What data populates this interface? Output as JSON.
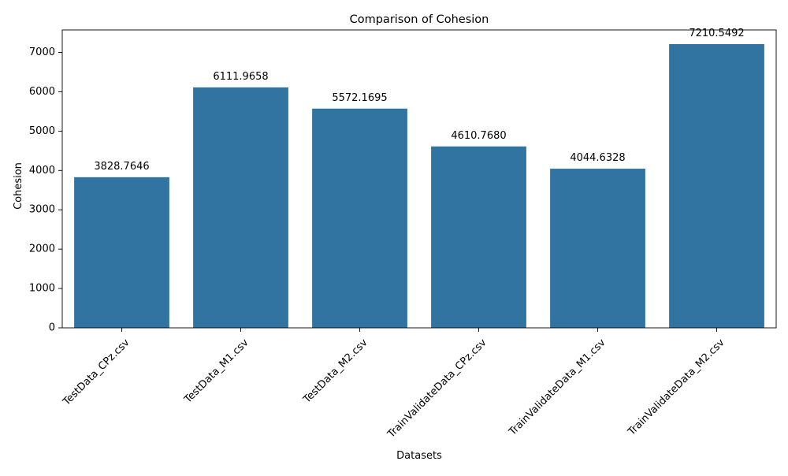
{
  "chart_data": {
    "type": "bar",
    "title": "Comparison of Cohesion",
    "xlabel": "Datasets",
    "ylabel": "Cohesion",
    "categories": [
      "TestData_CPz.csv",
      "TestData_M1.csv",
      "TestData_M2.csv",
      "TrainValidateData_CPz.csv",
      "TrainValidateData_M1.csv",
      "TrainValidateData_M2.csv"
    ],
    "values": [
      3828.7646,
      6111.9658,
      5572.1695,
      4610.768,
      4044.6328,
      7210.5492
    ],
    "value_labels": [
      "3828.7646",
      "6111.9658",
      "5572.1695",
      "4610.7680",
      "4044.6328",
      "7210.5492"
    ],
    "ylim": [
      0,
      7571
    ],
    "yticks": [
      0,
      1000,
      2000,
      3000,
      4000,
      5000,
      6000,
      7000
    ],
    "grid": false,
    "bar_color": "#3274a1"
  }
}
